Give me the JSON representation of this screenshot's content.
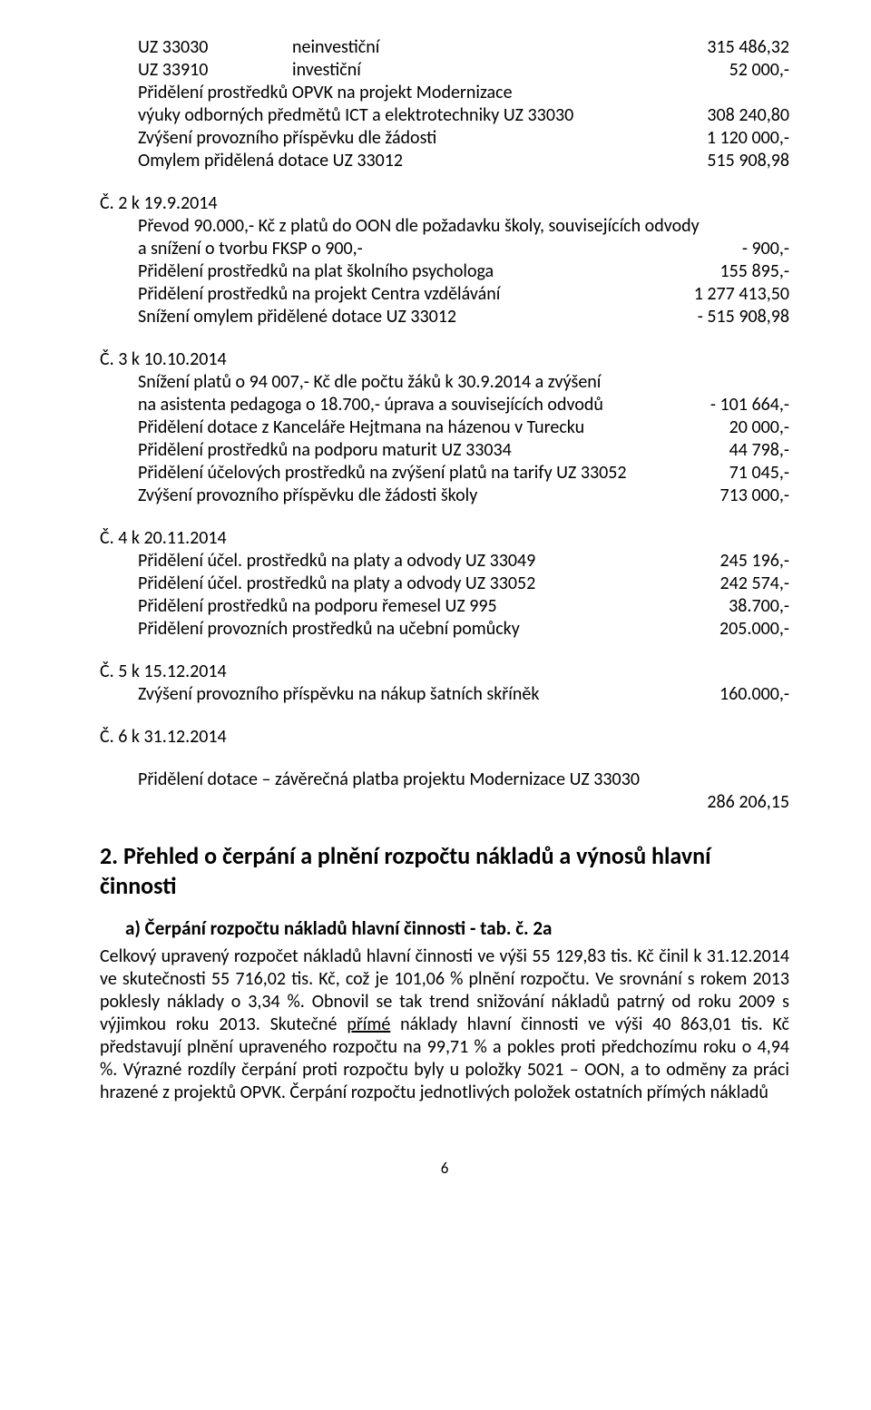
{
  "intro": {
    "l1c1": "UZ 33030",
    "l1c2": "neinvestiční",
    "l1c3": "315 486,32",
    "l2c1": "UZ 33910",
    "l2c2": "investiční",
    "l2c3": "52 000,-",
    "l3": "Přidělení prostředků OPVK na projekt Modernizace",
    "l4l": "výuky odborných předmětů ICT a elektrotechniky UZ 33030",
    "l4r": "308 240,80",
    "l5l": "Zvýšení provozního příspěvku dle žádosti",
    "l5r": "1 120 000,-",
    "l6l": "Omylem přidělená dotace UZ 33012",
    "l6r": "515 908,98"
  },
  "c2": {
    "head": "Č. 2  k 19.9.2014",
    "l1": "Převod 90.000,- Kč z platů do OON dle požadavku školy, souvisejících odvody",
    "l2l": "a snížení o tvorbu FKSP o 900,-",
    "l2r": "- 900,-",
    "l3l": "Přidělení prostředků na plat školního psychologa",
    "l3r": "155 895,-",
    "l4l": "Přidělení prostředků na projekt Centra vzdělávání",
    "l4r": "1 277 413,50",
    "l5l": "Snížení omylem přidělené dotace UZ 33012",
    "l5r": "- 515 908,98"
  },
  "c3": {
    "head": "Č. 3  k 10.10.2014",
    "l1": "Snížení platů o 94 007,- Kč dle počtu žáků k 30.9.2014 a zvýšení",
    "l2l": "na asistenta pedagoga o 18.700,-  úprava a souvisejících odvodů",
    "l2r": "- 101 664,-",
    "l3l": "Přidělení dotace z Kanceláře Hejtmana na házenou v Turecku",
    "l3r": "20 000,-",
    "l4l": "Přidělení prostředků na  podporu maturit UZ 33034",
    "l4r": "44 798,-",
    "l5l": "Přidělení účelových prostředků na zvýšení platů na tarify UZ 33052",
    "l5r": "71 045,-",
    "l6l": "Zvýšení provozního příspěvku dle žádosti školy",
    "l6r": "713 000,-"
  },
  "c4": {
    "head": "Č. 4  k 20.11.2014",
    "l1l": "Přidělení účel. prostředků na platy a odvody UZ 33049",
    "l1r": "245 196,-",
    "l2l": "Přidělení účel. prostředků na platy a odvody UZ 33052",
    "l2r": "242 574,-",
    "l3l": "Přidělení prostředků na podporu řemesel UZ 995",
    "l3r": "38.700,-",
    "l4l": "Přidělení provozních prostředků na učební pomůcky",
    "l4r": "205.000,-"
  },
  "c5": {
    "head": "Č. 5 k 15.12.2014",
    "l1l": "Zvýšení provozního příspěvku na nákup šatních skříněk",
    "l1r": "160.000,-"
  },
  "c6": {
    "head": "Č. 6 k 31.12.2014",
    "l1": "Přidělení dotace – závěrečná platba projektu Modernizace UZ 33030",
    "l1r": "286 206,15"
  },
  "sec2": {
    "title": "2. Přehled o čerpání a plnění rozpočtu nákladů a výnosů hlavní činnosti",
    "sub": "a)  Čerpání rozpočtu nákladů hlavní činnosti - tab. č. 2a",
    "p1a": "Celkový upravený rozpočet nákladů hlavní činnosti ve výši 55 129,83 tis. Kč činil k 31.12.2014 ve skutečnosti 55 716,02  tis. Kč, což je 101,06 % plnění rozpočtu. Ve srovnání s rokem 2013 poklesly náklady o 3,34 %. Obnovil se tak trend snižování nákladů patrný od roku 2009 s výjimkou roku 2013. Skutečné ",
    "p1u": "přímé",
    "p1b": " náklady hlavní činnosti ve výši 40 863,01 tis. Kč představují plnění upraveného rozpočtu na 99,71 % a pokles proti předchozímu roku o 4,94 %.  Výrazné rozdíly čerpání proti rozpočtu byly u položky 5021 – OON, a to odměny za práci hrazené z projektů OPVK. Čerpání rozpočtu jednotlivých položek ostatních přímých nákladů"
  },
  "pagenum": "6"
}
